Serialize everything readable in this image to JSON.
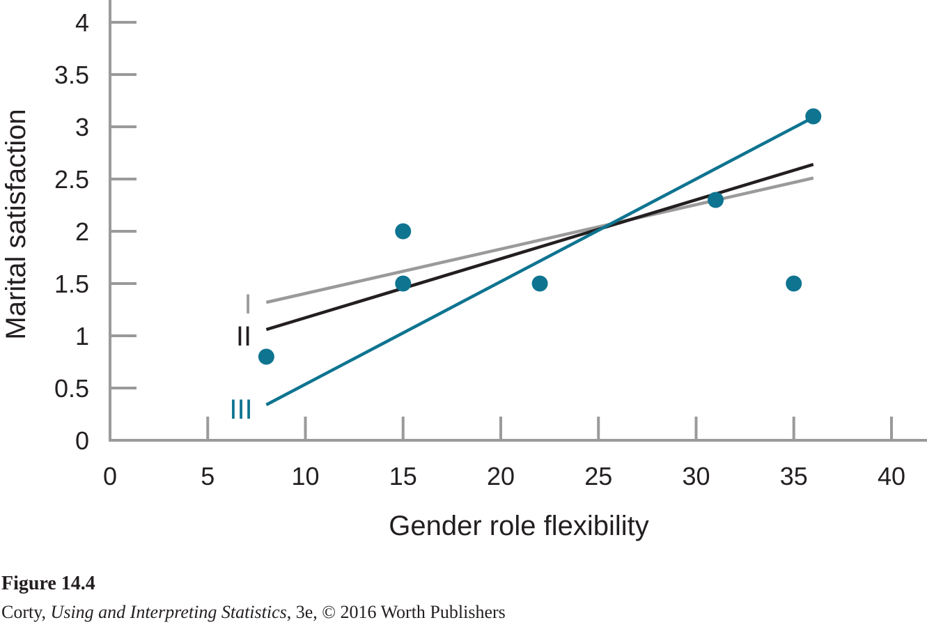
{
  "figure": {
    "title": "Figure 14.4",
    "credit_author": "Corty, ",
    "credit_book": "Using and Interpreting Statistics",
    "credit_rest": ", 3e, © 2016 Worth Publishers"
  },
  "chart_data": {
    "type": "scatter",
    "xlabel": "Gender role flexibility",
    "ylabel": "Marital satisfaction",
    "xlim": [
      0,
      40
    ],
    "ylim": [
      0,
      4
    ],
    "x_ticks": [
      0,
      5,
      10,
      15,
      20,
      25,
      30,
      35,
      40
    ],
    "y_ticks": [
      0,
      0.5,
      1,
      1.5,
      2,
      2.5,
      3,
      3.5,
      4
    ],
    "points": [
      {
        "x": 8,
        "y": 0.8
      },
      {
        "x": 15,
        "y": 2.0
      },
      {
        "x": 15,
        "y": 1.5
      },
      {
        "x": 22,
        "y": 1.5
      },
      {
        "x": 31,
        "y": 2.3
      },
      {
        "x": 35,
        "y": 1.5
      },
      {
        "x": 36,
        "y": 3.1
      }
    ],
    "lines": [
      {
        "label": "I",
        "color": "#9a9a9a",
        "x": [
          8,
          36
        ],
        "y": [
          1.32,
          2.51
        ]
      },
      {
        "label": "II",
        "color": "#231f20",
        "x": [
          8,
          36
        ],
        "y": [
          1.06,
          2.64
        ]
      },
      {
        "label": "III",
        "color": "#0e7490",
        "x": [
          8,
          36
        ],
        "y": [
          0.34,
          3.09
        ]
      }
    ],
    "colors": {
      "points": "#0e7490",
      "axis": "#9a9a9a",
      "text": "#231f20"
    },
    "grid": false
  }
}
